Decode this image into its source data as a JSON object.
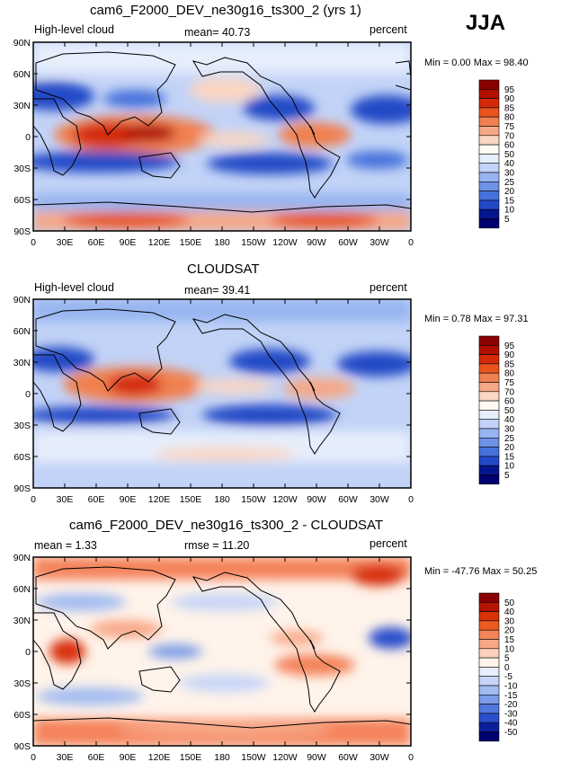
{
  "season": "JJA",
  "panels": [
    {
      "title": "cam6_F2000_DEV_ne30g16_ts300_2 (yrs 1)",
      "left_label": "High-level cloud",
      "mean_label": "mean=  40.73",
      "units": "percent",
      "minmax": "Min =    0.00  Max =   98.40",
      "levels": [
        "95",
        "90",
        "85",
        "80",
        "75",
        "70",
        "60",
        "50",
        "40",
        "30",
        "25",
        "20",
        "15",
        "10",
        "5"
      ]
    },
    {
      "title": "CLOUDSAT",
      "left_label": "High-level cloud",
      "mean_label": "mean=  39.41",
      "units": "percent",
      "minmax": "Min =    0.78  Max =   97.31",
      "levels": [
        "95",
        "90",
        "85",
        "80",
        "75",
        "70",
        "60",
        "50",
        "40",
        "30",
        "25",
        "20",
        "15",
        "10",
        "5"
      ]
    },
    {
      "title": "cam6_F2000_DEV_ne30g16_ts300_2 - CLOUDSAT",
      "left_label": "mean =   1.33",
      "mean_label": "rmse =   11.20",
      "units": "percent",
      "minmax": "Min = -47.76  Max =   50.25",
      "levels": [
        "50",
        "40",
        "30",
        "20",
        "15",
        "10",
        "5",
        "0",
        "-5",
        "-10",
        "-15",
        "-20",
        "-30",
        "-40",
        "-50"
      ]
    }
  ],
  "lat_ticks": [
    "90N",
    "60N",
    "30N",
    "0",
    "30S",
    "60S",
    "90S"
  ],
  "lon_ticks": [
    "0",
    "30E",
    "60E",
    "90E",
    "120E",
    "150E",
    "180",
    "150W",
    "120W",
    "90W",
    "60W",
    "30W",
    "0"
  ],
  "colors": {
    "abs_scale": [
      "#8b0000",
      "#b01000",
      "#d42a0a",
      "#e8531e",
      "#f08050",
      "#f5a888",
      "#fbd6c2",
      "#fffbf3",
      "#e6eefc",
      "#c2d3f7",
      "#97b5f0",
      "#6e93e6",
      "#4772dc",
      "#2148c6",
      "#05158f",
      "#000070"
    ],
    "diff_scale": [
      "#8b0000",
      "#b41500",
      "#d8320a",
      "#ec5a22",
      "#f4835a",
      "#f8a888",
      "#fcd0bd",
      "#fff3ea",
      "#e9eefc",
      "#c7d6f7",
      "#a2bcf0",
      "#7b9ce7",
      "#5177dc",
      "#2a4fcb",
      "#0b1f9c",
      "#000070"
    ]
  },
  "chart_data": [
    {
      "type": "heatmap",
      "title": "cam6_F2000_DEV_ne30g16_ts300_2 (yrs 1)",
      "variable": "High-level cloud",
      "units": "percent",
      "mean": 40.73,
      "min": 0.0,
      "max": 98.4,
      "levels": [
        5,
        10,
        15,
        20,
        25,
        30,
        40,
        50,
        60,
        70,
        75,
        80,
        85,
        90,
        95
      ],
      "xlim": [
        0,
        360
      ],
      "ylim": [
        -90,
        90
      ]
    },
    {
      "type": "heatmap",
      "title": "CLOUDSAT",
      "variable": "High-level cloud",
      "units": "percent",
      "mean": 39.41,
      "min": 0.78,
      "max": 97.31,
      "levels": [
        5,
        10,
        15,
        20,
        25,
        30,
        40,
        50,
        60,
        70,
        75,
        80,
        85,
        90,
        95
      ],
      "xlim": [
        0,
        360
      ],
      "ylim": [
        -90,
        90
      ]
    },
    {
      "type": "heatmap",
      "title": "cam6_F2000_DEV_ne30g16_ts300_2 - CLOUDSAT",
      "units": "percent",
      "mean": 1.33,
      "rmse": 11.2,
      "min": -47.76,
      "max": 50.25,
      "levels": [
        -50,
        -40,
        -30,
        -20,
        -15,
        -10,
        -5,
        0,
        5,
        10,
        15,
        20,
        30,
        40,
        50
      ],
      "xlim": [
        0,
        360
      ],
      "ylim": [
        -90,
        90
      ]
    }
  ]
}
